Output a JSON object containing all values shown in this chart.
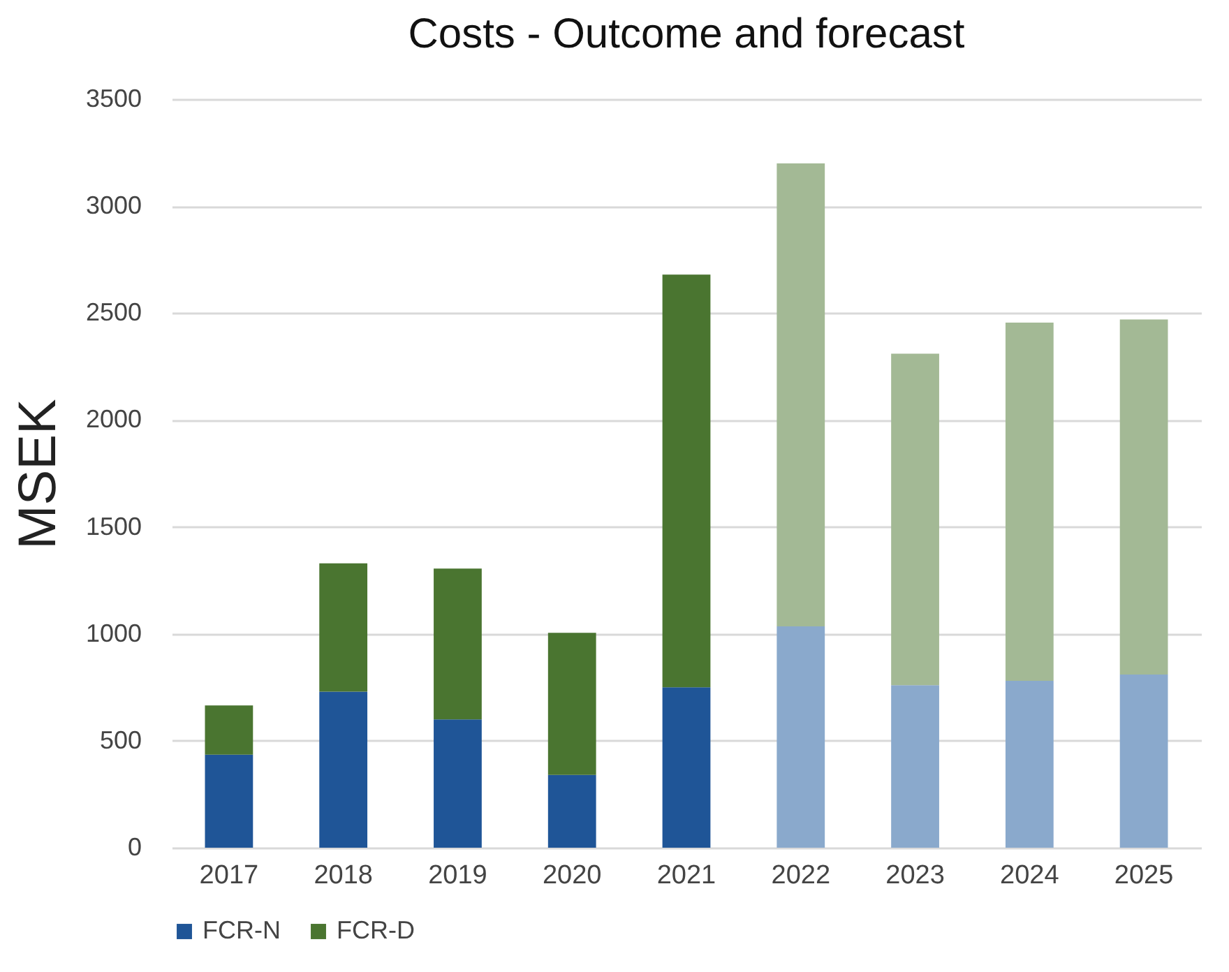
{
  "chart_data": {
    "type": "bar",
    "title": "Costs - Outcome and forecast",
    "ylabel": "MSEK",
    "stacked": true,
    "categories": [
      "2017",
      "2018",
      "2019",
      "2020",
      "2021",
      "2022",
      "2023",
      "2024",
      "2025"
    ],
    "series": [
      {
        "name": "FCR-N",
        "color": "#1f5597",
        "colors": [
          "#1f5597",
          "#1f5597",
          "#1f5597",
          "#1f5597",
          "#1f5597",
          "#8aa9cc",
          "#8aa9cc",
          "#8aa9cc",
          "#8aa9cc"
        ],
        "values": [
          435,
          730,
          600,
          340,
          750,
          1035,
          760,
          780,
          810
        ]
      },
      {
        "name": "FCR-D",
        "color": "#4a7530",
        "colors": [
          "#4a7530",
          "#4a7530",
          "#4a7530",
          "#4a7530",
          "#4a7530",
          "#a3b995",
          "#a3b995",
          "#a3b995",
          "#a3b995"
        ],
        "values": [
          230,
          600,
          705,
          665,
          1930,
          2165,
          1550,
          1675,
          1660
        ]
      }
    ],
    "ylim": [
      0,
      3500
    ],
    "yticks": [
      0,
      500,
      1000,
      1500,
      2000,
      2500,
      3000,
      3500
    ],
    "grid": "y",
    "legend": "bottom"
  }
}
